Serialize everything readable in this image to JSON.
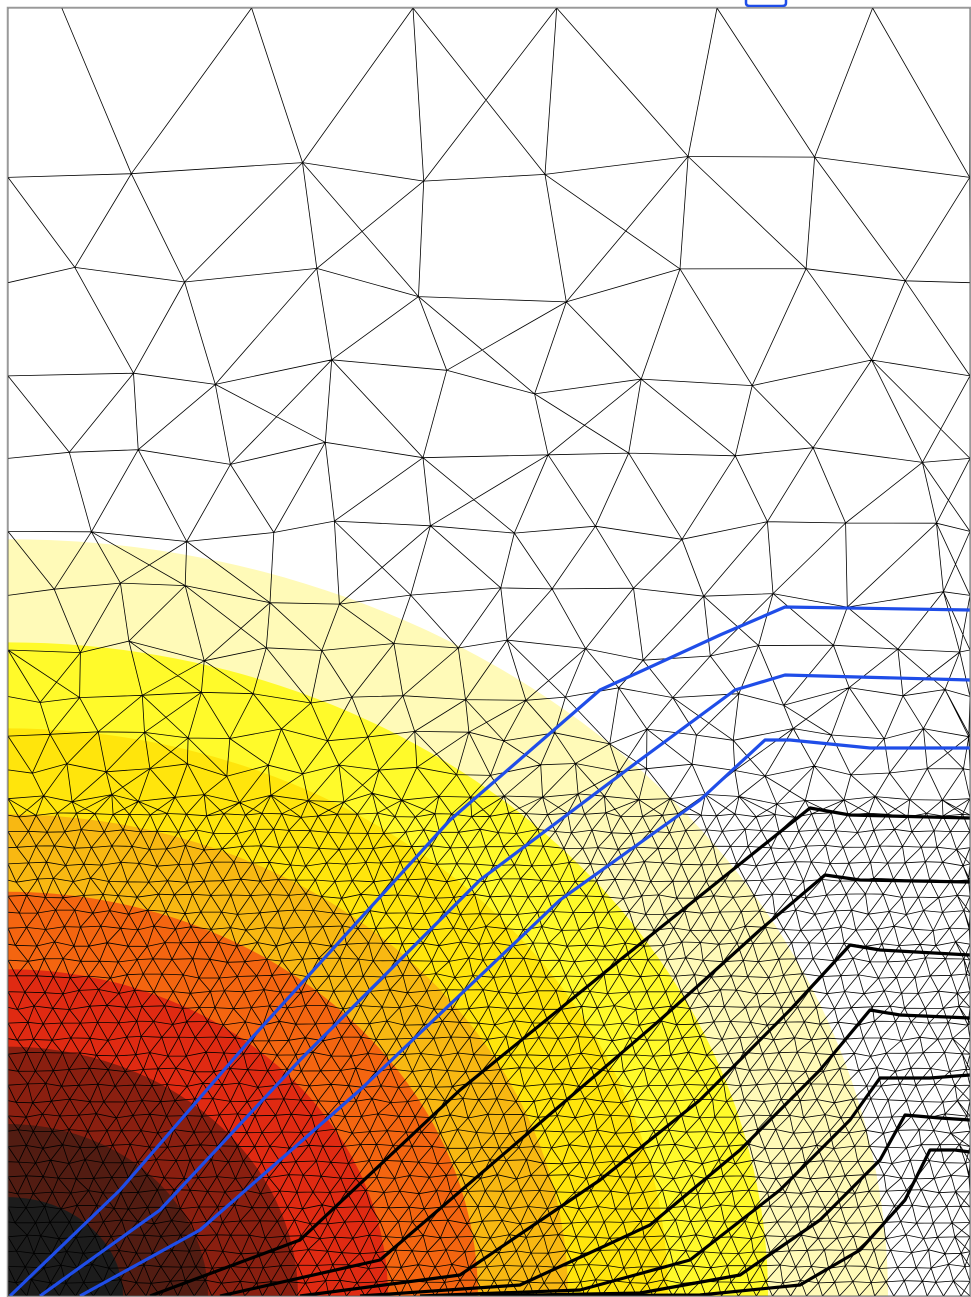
{
  "view": {
    "background": "#ffffff",
    "frame_color": "#999999",
    "mesh_color": "#000000",
    "fine_mesh_color": "#1a1a1a",
    "faint_mesh_color": "#b4b4b4"
  },
  "field": {
    "bands": [
      {
        "level": 1,
        "color": "#1c1c1c"
      },
      {
        "level": 2,
        "color": "#521c12"
      },
      {
        "level": 3,
        "color": "#8a1f10"
      },
      {
        "level": 4,
        "color": "#e02a12"
      },
      {
        "level": 5,
        "color": "#f46510"
      },
      {
        "level": 6,
        "color": "#f8b812"
      },
      {
        "level": 7,
        "color": "#ffe50c"
      },
      {
        "level": 8,
        "color": "#fffa2a"
      },
      {
        "level": 9,
        "color": "#fffab8"
      }
    ]
  },
  "contours": {
    "blue_color": "#1f4de8",
    "black_color": "#000000",
    "blue_count": 3,
    "black_count": 7
  },
  "marker": {
    "icon": "speech-bubble-icon",
    "color": "#1f4de8"
  }
}
